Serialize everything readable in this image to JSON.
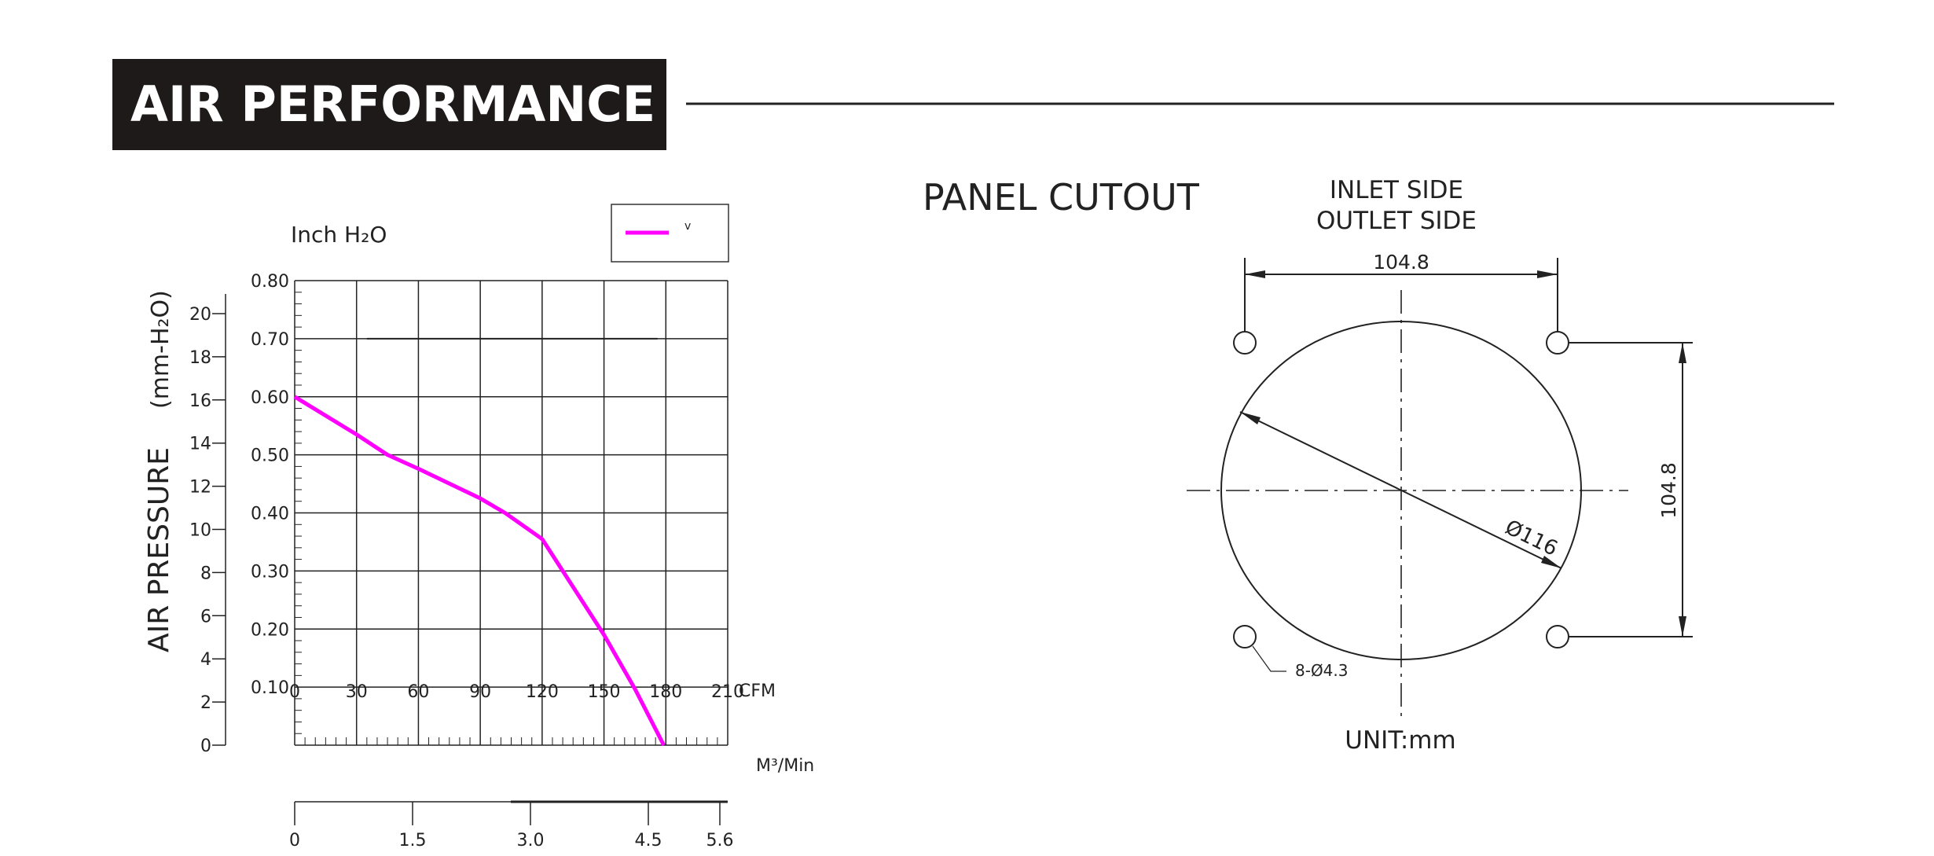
{
  "header": {
    "title": "AIR PERFORMANCE"
  },
  "chart_data": {
    "type": "line",
    "title": "",
    "xlabel": "CFM",
    "x2label": "M³/Min",
    "ylabel": "Inch H₂O",
    "y2label": "AIR PRESSURE",
    "y2unit": "(mm-H₂O)",
    "xlim": [
      0,
      210
    ],
    "ylim": [
      0,
      0.8
    ],
    "y2lim": [
      0,
      20
    ],
    "grid": true,
    "legend_position": "top-right",
    "x_ticks": [
      "0",
      "30",
      "60",
      "90",
      "120",
      "150",
      "180",
      "210"
    ],
    "y_ticks": [
      "0.10",
      "0.20",
      "0.30",
      "0.40",
      "0.50",
      "0.60",
      "0.70",
      "0.80"
    ],
    "y2_ticks": [
      "0",
      "2",
      "4",
      "6",
      "8",
      "10",
      "12",
      "14",
      "16",
      "18",
      "20"
    ],
    "x2_ticks": [
      "0",
      "1.5",
      "3.0",
      "4.5",
      "5.6"
    ],
    "series": [
      {
        "name": "v",
        "color": "#ff00ff",
        "x": [
          0,
          30,
          45,
          60,
          90,
          102,
          112,
          120,
          130,
          150,
          165,
          179
        ],
        "y": [
          0.6,
          0.535,
          0.5,
          0.476,
          0.425,
          0.4,
          0.375,
          0.355,
          0.3,
          0.19,
          0.097,
          0
        ]
      }
    ],
    "reference_line": {
      "y": 0.7,
      "x": [
        35,
        176
      ]
    }
  },
  "panel": {
    "title": "PANEL CUTOUT",
    "inlet": "INLET SIDE",
    "outlet": "OUTLET SIDE",
    "dim_horizontal": "104.8",
    "dim_vertical": "104.8",
    "diameter": "Ø116",
    "holes": "8-Ø4.3",
    "unit": "UNIT:mm"
  }
}
